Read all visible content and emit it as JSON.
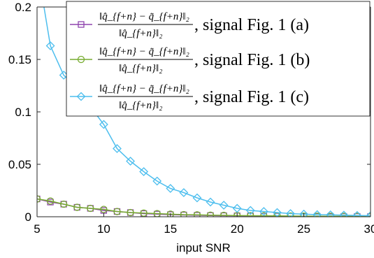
{
  "chart_data": {
    "type": "line",
    "title": "",
    "xlabel": "input SNR",
    "ylabel": "",
    "xlim": [
      5,
      30
    ],
    "ylim": [
      0,
      0.2
    ],
    "x_ticks": [
      5,
      10,
      15,
      20,
      25,
      30
    ],
    "y_ticks": [
      0,
      0.05,
      0.1,
      0.15,
      0.2
    ],
    "x_tick_labels": [
      "5",
      "10",
      "15",
      "20",
      "25",
      "30"
    ],
    "y_tick_labels": [
      "0",
      "0.05",
      "0.1",
      "0.15",
      "0.2"
    ],
    "grid": false,
    "legend_position": "top-right",
    "x": [
      5,
      6,
      7,
      8,
      9,
      10,
      11,
      12,
      13,
      14,
      15,
      16,
      17,
      18,
      19,
      20,
      21,
      22,
      23,
      24,
      25,
      26,
      27,
      28,
      29,
      30
    ],
    "series": [
      {
        "name": "||q̂_{f+n} − q̃_{f+n}||₂ / ||q̂_{f+n}||₂, signal Fig. 1 (a)",
        "label_suffix": ", signal Fig. 1 (a)",
        "color": "#8e44ad",
        "marker": "square",
        "values": [
          0.017,
          0.014,
          0.012,
          0.009,
          0.008,
          0.006,
          0.005,
          0.004,
          0.003,
          0.0025,
          0.002,
          0.0017,
          0.0014,
          0.0012,
          0.001,
          0.0009,
          0.0008,
          0.0007,
          0.0006,
          0.0005,
          0.0004,
          0.0004,
          0.0003,
          0.0003,
          0.0003,
          0.0002
        ]
      },
      {
        "name": "||q̂_{f+n} − q̃_{f+n}||₂ / ||q̂_{f+n}||₂, signal Fig. 1 (b)",
        "label_suffix": ", signal Fig. 1 (b)",
        "color": "#77ac30",
        "marker": "circle",
        "values": [
          0.017,
          0.015,
          0.012,
          0.009,
          0.008,
          0.007,
          0.005,
          0.004,
          0.0035,
          0.003,
          0.0025,
          0.002,
          0.0018,
          0.0015,
          0.0013,
          0.0011,
          0.001,
          0.0009,
          0.0008,
          0.0007,
          0.0006,
          0.0005,
          0.0005,
          0.0004,
          0.0004,
          0.0003
        ]
      },
      {
        "name": "||q̂_{f+n} − q̃_{f+n}||₂ / ||q̂_{f+n}||₂, signal Fig. 1 (c)",
        "label_suffix": ", signal Fig. 1 (c)",
        "color": "#4dbeee",
        "marker": "diamond",
        "values": [
          0.24,
          0.163,
          0.135,
          0.123,
          0.105,
          0.088,
          0.065,
          0.053,
          0.043,
          0.034,
          0.027,
          0.023,
          0.018,
          0.014,
          0.011,
          0.008,
          0.006,
          0.005,
          0.004,
          0.003,
          0.0025,
          0.002,
          0.0018,
          0.0015,
          0.0012,
          0.001
        ]
      }
    ]
  }
}
